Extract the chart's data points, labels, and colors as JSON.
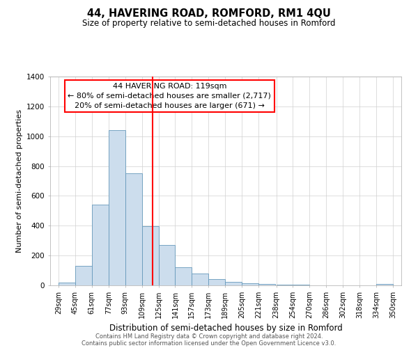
{
  "title": "44, HAVERING ROAD, ROMFORD, RM1 4QU",
  "subtitle": "Size of property relative to semi-detached houses in Romford",
  "xlabel": "Distribution of semi-detached houses by size in Romford",
  "ylabel": "Number of semi-detached properties",
  "footnote1": "Contains HM Land Registry data © Crown copyright and database right 2024.",
  "footnote2": "Contains public sector information licensed under the Open Government Licence v3.0.",
  "bar_left_edges": [
    29,
    45,
    61,
    77,
    93,
    109,
    125,
    141,
    157,
    173,
    189,
    205,
    221,
    238,
    254,
    270,
    286,
    302,
    318,
    334
  ],
  "bar_widths": [
    16,
    16,
    16,
    16,
    16,
    16,
    16,
    16,
    16,
    16,
    16,
    16,
    16,
    16,
    16,
    16,
    16,
    16,
    16,
    16
  ],
  "bar_heights": [
    20,
    130,
    540,
    1040,
    750,
    395,
    270,
    120,
    80,
    40,
    25,
    15,
    10,
    5,
    5,
    0,
    0,
    0,
    0,
    10
  ],
  "bar_color": "#ccdded",
  "bar_edge_color": "#6699bb",
  "grid_color": "#d0d0d0",
  "vline_x": 119,
  "vline_color": "red",
  "annotation_title": "44 HAVERING ROAD: 119sqm",
  "annotation_line1": "← 80% of semi-detached houses are smaller (2,717)",
  "annotation_line2": "20% of semi-detached houses are larger (671) →",
  "ylim": [
    0,
    1400
  ],
  "xlim": [
    21,
    358
  ],
  "xtick_labels": [
    "29sqm",
    "45sqm",
    "61sqm",
    "77sqm",
    "93sqm",
    "109sqm",
    "125sqm",
    "141sqm",
    "157sqm",
    "173sqm",
    "189sqm",
    "205sqm",
    "221sqm",
    "238sqm",
    "254sqm",
    "270sqm",
    "286sqm",
    "302sqm",
    "318sqm",
    "334sqm",
    "350sqm"
  ],
  "xtick_positions": [
    29,
    45,
    61,
    77,
    93,
    109,
    125,
    141,
    157,
    173,
    189,
    205,
    221,
    238,
    254,
    270,
    286,
    302,
    318,
    334,
    350
  ],
  "ytick_positions": [
    0,
    200,
    400,
    600,
    800,
    1000,
    1200,
    1400
  ],
  "background_color": "#ffffff",
  "title_fontsize": 10.5,
  "subtitle_fontsize": 8.5,
  "xlabel_fontsize": 8.5,
  "ylabel_fontsize": 8,
  "tick_fontsize": 7,
  "annotation_fontsize": 8,
  "footnote_fontsize": 6
}
